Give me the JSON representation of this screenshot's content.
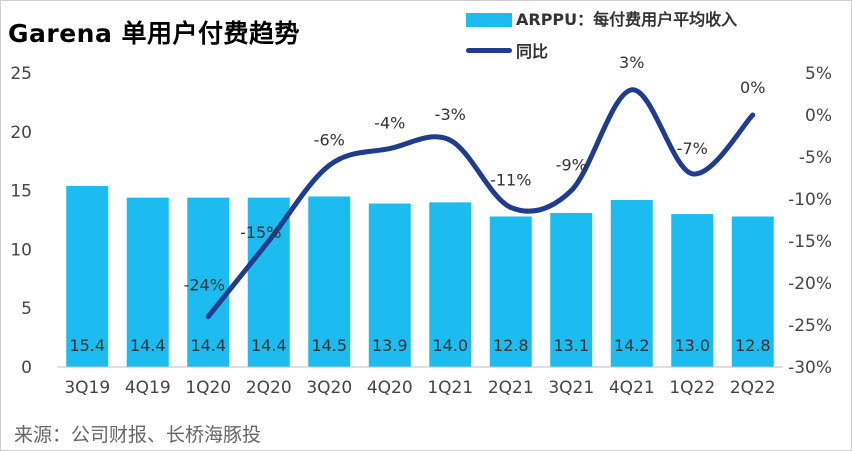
{
  "chart_data": {
    "type": "bar",
    "title": "Garena 单用户付费趋势",
    "categories": [
      "3Q19",
      "4Q19",
      "1Q20",
      "2Q20",
      "3Q20",
      "4Q20",
      "1Q21",
      "2Q21",
      "3Q21",
      "4Q21",
      "1Q22",
      "2Q22"
    ],
    "series": [
      {
        "name": "ARPPU：每付费用户平均收入",
        "type": "bar",
        "axis": "left",
        "color": "#1CBBF0",
        "values": [
          15.4,
          14.4,
          14.4,
          14.4,
          14.5,
          13.9,
          14.0,
          12.8,
          13.1,
          14.2,
          13.0,
          12.8
        ],
        "labels": [
          "15.4",
          "14.4",
          "14.4",
          "14.4",
          "14.5",
          "13.9",
          "14.0",
          "12.8",
          "13.1",
          "14.2",
          "13.0",
          "12.8"
        ]
      },
      {
        "name": "同比",
        "type": "line",
        "axis": "right",
        "color": "#1F3C8E",
        "values": [
          null,
          null,
          -24,
          -15,
          -6,
          -4,
          -3,
          -11,
          -9,
          3,
          -7,
          0
        ],
        "labels": [
          "",
          "",
          "-24%",
          "-15%",
          "-6%",
          "-4%",
          "-3%",
          "-11%",
          "-9%",
          "3%",
          "-7%",
          "0%"
        ]
      }
    ],
    "y_left": {
      "range": [
        0,
        25
      ],
      "ticks": [
        "0",
        "5",
        "10",
        "15",
        "20",
        "25"
      ]
    },
    "y_right": {
      "range": [
        -30,
        5
      ],
      "ticks": [
        "5%",
        "0%",
        "-5%",
        "-10%",
        "-15%",
        "-20%",
        "-25%",
        "-30%"
      ]
    },
    "legend_position": "top-right",
    "grid": false
  },
  "source": "来源：公司财报、长桥海豚投"
}
